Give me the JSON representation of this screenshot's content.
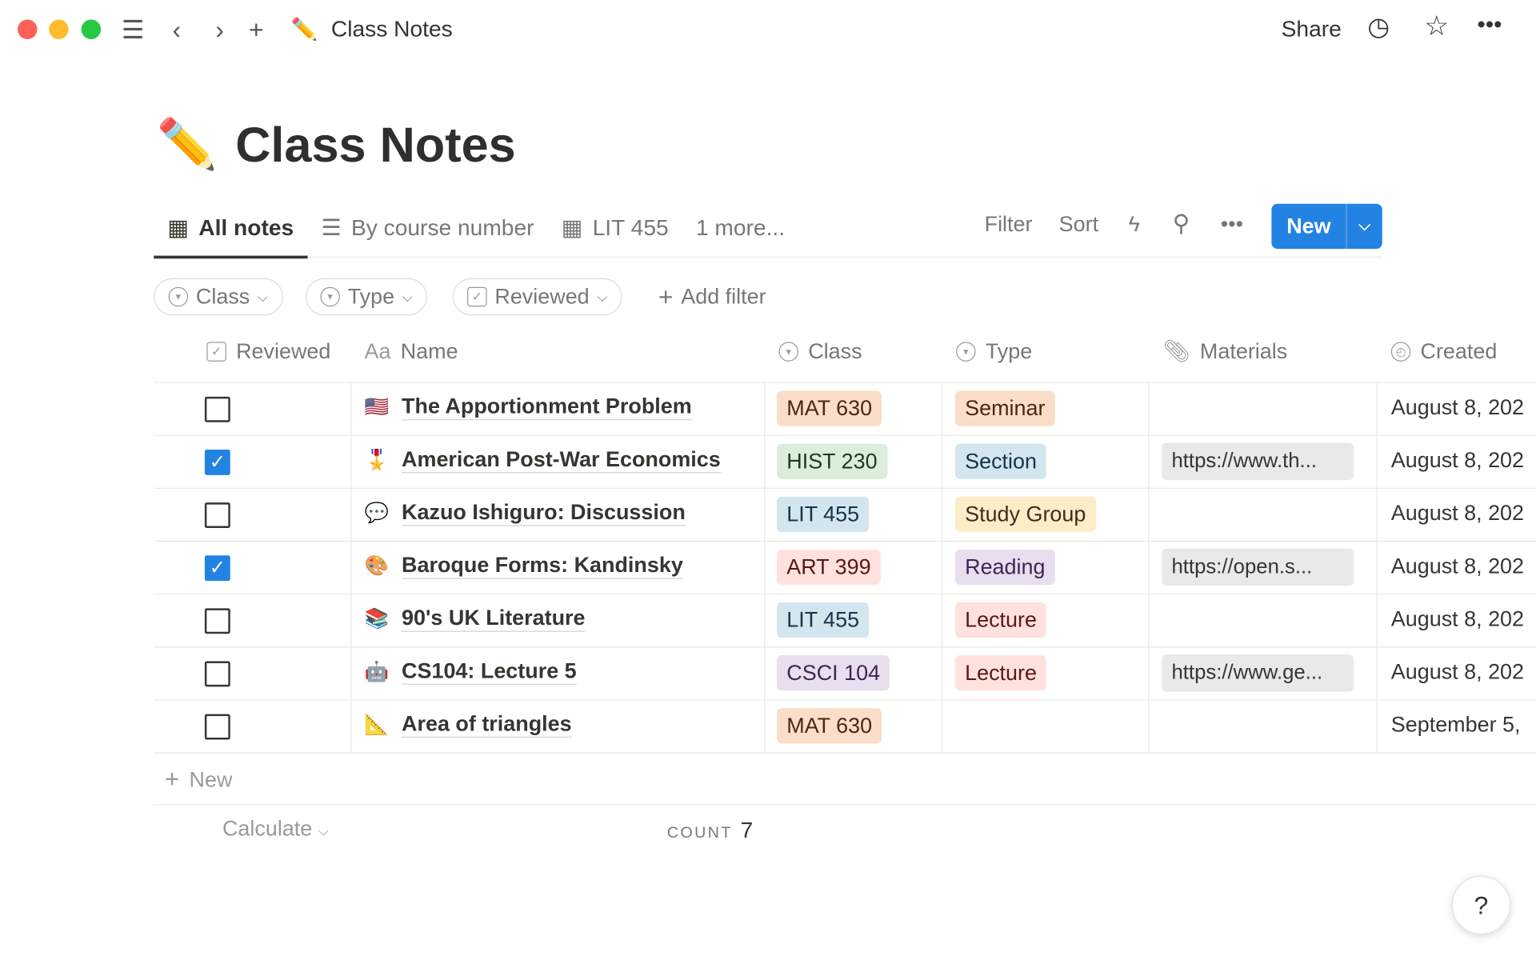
{
  "titlebar": {
    "title": "Class Notes",
    "emoji": "✏️",
    "share": "Share"
  },
  "page": {
    "title": "Class Notes",
    "emoji": "✏️"
  },
  "tabs": [
    {
      "label": "All notes",
      "icon": "table-icon",
      "active": true
    },
    {
      "label": "By course number",
      "icon": "list-icon"
    },
    {
      "label": "LIT 455",
      "icon": "table-icon"
    },
    {
      "label": "1 more..."
    }
  ],
  "toolbar": {
    "filter": "Filter",
    "sort": "Sort",
    "new": "New"
  },
  "filters": [
    {
      "label": "Class",
      "icon": "select-icon"
    },
    {
      "label": "Type",
      "icon": "select-icon"
    },
    {
      "label": "Reviewed",
      "icon": "checkbox-icon"
    }
  ],
  "add_filter": "Add filter",
  "columns": {
    "reviewed": "Reviewed",
    "name": "Name",
    "name_icon": "Aa",
    "class": "Class",
    "type": "Type",
    "materials": "Materials",
    "created": "Created"
  },
  "rows": [
    {
      "reviewed": false,
      "emoji": "🇺🇸",
      "name": "The Apportionment Problem",
      "class": "MAT 630",
      "class_color": "orange",
      "type": "Seminar",
      "type_color": "orange",
      "materials": "",
      "created": "August 8, 202"
    },
    {
      "reviewed": true,
      "emoji": "🎖️",
      "name": "American Post-War Economics",
      "class": "HIST 230",
      "class_color": "green",
      "type": "Section",
      "type_color": "blue",
      "materials": "https://www.th...",
      "created": "August 8, 202"
    },
    {
      "reviewed": false,
      "emoji": "💬",
      "name": "Kazuo Ishiguro: Discussion",
      "class": "LIT 455",
      "class_color": "blue",
      "type": "Study Group",
      "type_color": "yellow",
      "materials": "",
      "created": "August 8, 202"
    },
    {
      "reviewed": true,
      "emoji": "🎨",
      "name": "Baroque Forms: Kandinsky",
      "class": "ART 399",
      "class_color": "red",
      "type": "Reading",
      "type_color": "purple",
      "materials": "https://open.s...",
      "created": "August 8, 202"
    },
    {
      "reviewed": false,
      "emoji": "📚",
      "name": "90's UK Literature",
      "class": "LIT 455",
      "class_color": "blue",
      "type": "Lecture",
      "type_color": "red",
      "materials": "",
      "created": "August 8, 202"
    },
    {
      "reviewed": false,
      "emoji": "🤖",
      "name": "CS104: Lecture 5",
      "class": "CSCI 104",
      "class_color": "purple",
      "type": "Lecture",
      "type_color": "red",
      "materials": "https://www.ge...",
      "created": "August 8, 202"
    },
    {
      "reviewed": false,
      "emoji": "📐",
      "name": "Area of triangles",
      "class": "MAT 630",
      "class_color": "orange",
      "type": "",
      "type_color": "",
      "materials": "",
      "created": "September 5,"
    }
  ],
  "new_row": "New",
  "footer": {
    "calculate": "Calculate",
    "count_label": "COUNT",
    "count": "7"
  },
  "help": "?",
  "colors": {
    "accent": "#2383e2",
    "tag_bg": {
      "orange": "#fadec9",
      "green": "#dbeddb",
      "blue": "#d3e5ef",
      "red": "#ffe2dd",
      "purple": "#e8deee",
      "yellow": "#fdecc8"
    },
    "tag_fg": {
      "orange": "#49290e",
      "green": "#1c3829",
      "blue": "#183347",
      "red": "#5d1715",
      "purple": "#412454",
      "yellow": "#402c1b"
    }
  }
}
